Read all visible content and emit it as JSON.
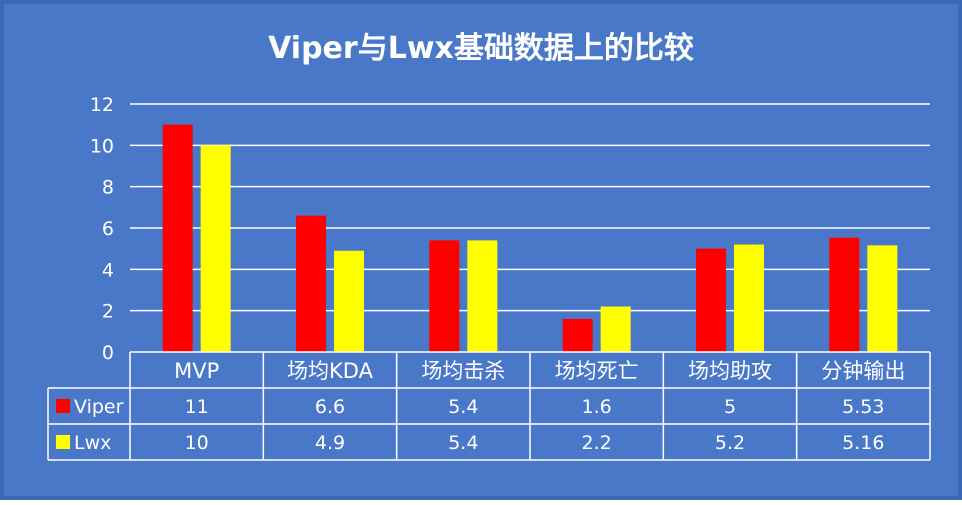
{
  "colors": {
    "background": "#4a78c8",
    "frame": "#3b68b5",
    "gridline": "#ffffff",
    "text": "#ffffff",
    "viper": "#ff0000",
    "lwx": "#ffff00",
    "table_border": "#ffffff"
  },
  "chart_data": {
    "type": "bar",
    "title": "Viper与Lwx基础数据上的比较",
    "categories": [
      "MVP",
      "场均KDA",
      "场均击杀",
      "场均死亡",
      "场均助攻",
      "分钟输出"
    ],
    "series": [
      {
        "name": "Viper",
        "color": "#ff0000",
        "values": [
          11,
          6.6,
          5.4,
          1.6,
          5,
          5.53
        ],
        "table_labels": [
          "11",
          "6.6",
          "5.4",
          "1.6",
          "5",
          "5.53"
        ]
      },
      {
        "name": "Lwx",
        "color": "#ffff00",
        "values": [
          10,
          4.9,
          5.4,
          2.2,
          5.2,
          5.16
        ],
        "table_labels": [
          "10",
          "4.9",
          "5.4",
          "2.2",
          "5.2",
          "5.16"
        ]
      }
    ],
    "y_ticks": [
      "0",
      "2",
      "4",
      "6",
      "8",
      "10",
      "12"
    ],
    "ylim": [
      0,
      12
    ],
    "grid": true,
    "legend": "data-table"
  }
}
